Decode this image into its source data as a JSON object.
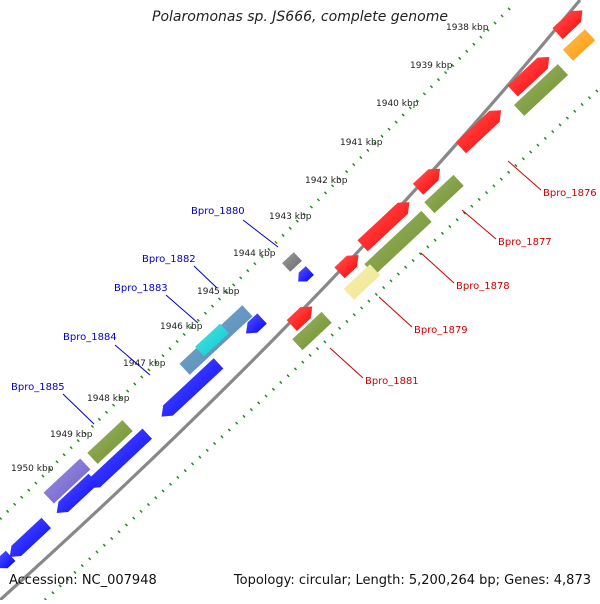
{
  "title": "Polaromonas sp. JS666, complete genome",
  "footer": {
    "accession": "Accession: NC_007948",
    "summary": "Topology: circular; Length: 5,200,264 bp; Genes: 4,873"
  },
  "ticks": [
    "1938 kbp",
    "1939 kbp",
    "1940 kbp",
    "1941 kbp",
    "1942 kbp",
    "1943 kbp",
    "1944 kbp",
    "1945 kbp",
    "1946 kbp",
    "1947 kbp",
    "1948 kbp",
    "1949 kbp",
    "1950 kbp"
  ],
  "left_gene_labels": [
    "Bpro_1880",
    "Bpro_1882",
    "Bpro_1883",
    "Bpro_1884",
    "Bpro_1885"
  ],
  "right_gene_labels": [
    "Bpro_1876",
    "Bpro_1877",
    "Bpro_1878",
    "Bpro_1879",
    "Bpro_1881"
  ],
  "colors": {
    "forward_cds": "#ff0000",
    "reverse_cds": "#0000ff",
    "cog_green": "#6b8e23",
    "cog_orange": "#ff9900",
    "cog_yellow": "#f0e68c",
    "cog_steelblue": "#4682b4",
    "cog_slate": "#6a5acd",
    "cog_cyan": "#00ced1",
    "cog_gray": "#696969",
    "backbone": "#888888",
    "gc_ticks": "#228b22",
    "left_label": "#0000cc",
    "right_label": "#cc0000"
  }
}
